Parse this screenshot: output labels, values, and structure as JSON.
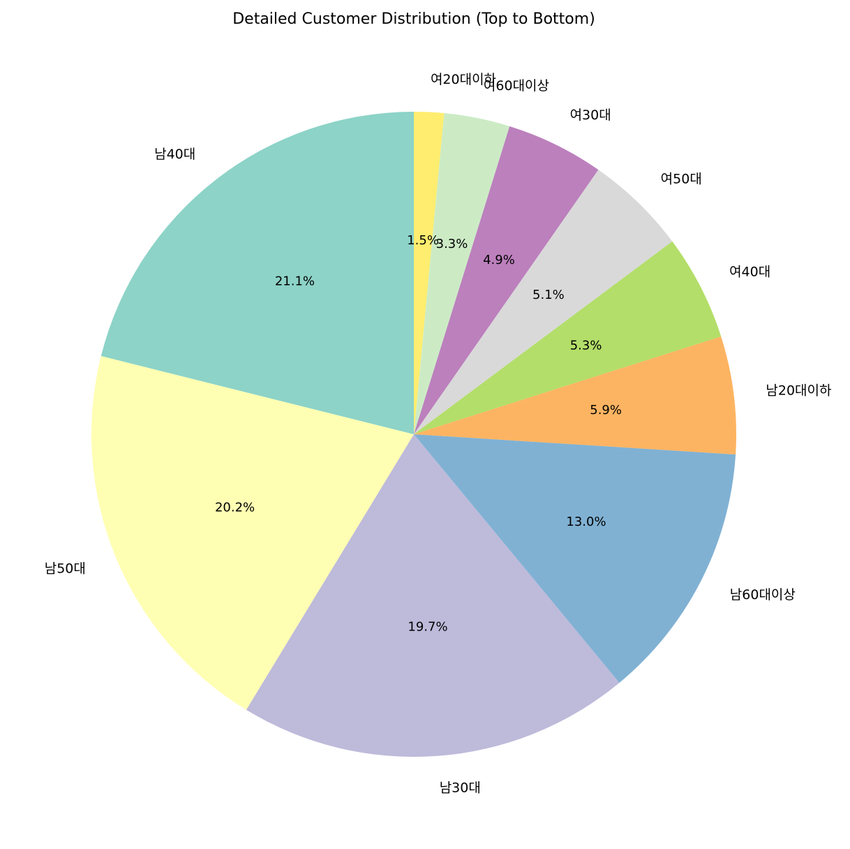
{
  "chart_data": {
    "type": "pie",
    "title": "Detailed Customer Distribution (Top to Bottom)",
    "start_angle_deg": 90,
    "direction": "clockwise",
    "slices": [
      {
        "label": "여20대이하",
        "value": 1.5,
        "pct_text": "1.5%",
        "color": "#ffed6f"
      },
      {
        "label": "여60대이상",
        "value": 3.3,
        "pct_text": "3.3%",
        "color": "#ccebc5"
      },
      {
        "label": "여30대",
        "value": 4.9,
        "pct_text": "4.9%",
        "color": "#bc80bd"
      },
      {
        "label": "여50대",
        "value": 5.1,
        "pct_text": "5.1%",
        "color": "#d9d9d9"
      },
      {
        "label": "여40대",
        "value": 5.3,
        "pct_text": "5.3%",
        "color": "#b3de69"
      },
      {
        "label": "남20대이하",
        "value": 5.9,
        "pct_text": "5.9%",
        "color": "#fdb462"
      },
      {
        "label": "남60대이상",
        "value": 13.0,
        "pct_text": "13.0%",
        "color": "#80b1d3"
      },
      {
        "label": "남30대",
        "value": 19.7,
        "pct_text": "19.7%",
        "color": "#bebada"
      },
      {
        "label": "남50대",
        "value": 20.2,
        "pct_text": "20.2%",
        "color": "#ffffb3"
      },
      {
        "label": "남40대",
        "value": 21.1,
        "pct_text": "21.1%",
        "color": "#8dd3c7"
      }
    ]
  }
}
